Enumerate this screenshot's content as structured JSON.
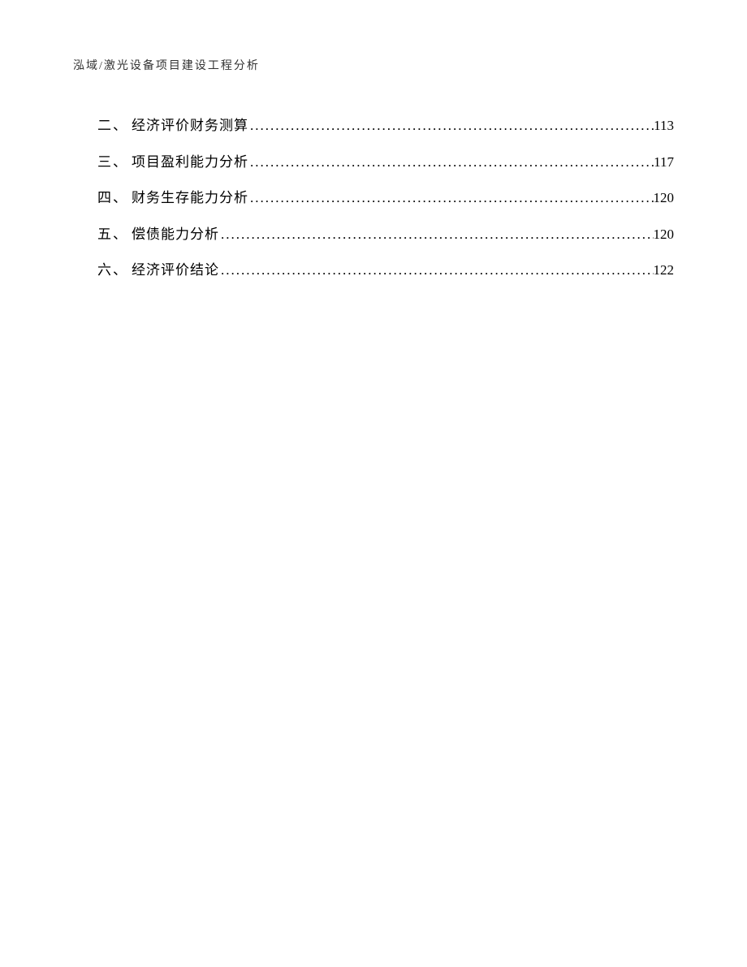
{
  "header": {
    "text": "泓域/激光设备项目建设工程分析"
  },
  "toc": {
    "entries": [
      {
        "num": "二",
        "sep": "、",
        "title": "经济评价财务测算",
        "page": "113"
      },
      {
        "num": "三",
        "sep": "、",
        "title": "项目盈利能力分析",
        "page": "117"
      },
      {
        "num": "四",
        "sep": "、",
        "title": "财务生存能力分析",
        "page": "120"
      },
      {
        "num": "五",
        "sep": "、",
        "title": "偿债能力分析",
        "page": "120"
      },
      {
        "num": "六",
        "sep": "、",
        "title": "经济评价结论",
        "page": "122"
      }
    ],
    "dot_leader": "............................................................................................................................................"
  },
  "styles": {
    "page_bg": "#ffffff",
    "text_color": "#000000",
    "header_color": "#333333",
    "header_fontsize": 14,
    "body_fontsize": 17
  }
}
